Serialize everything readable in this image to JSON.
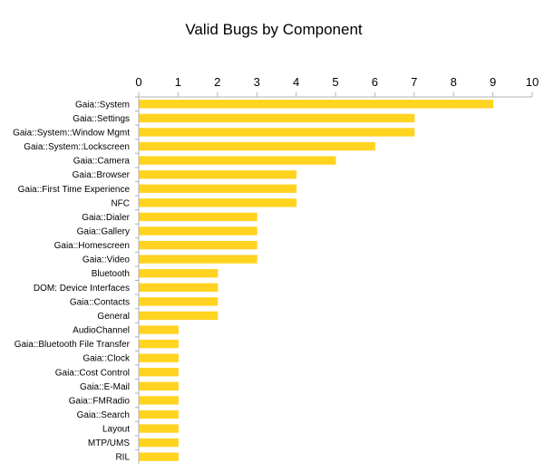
{
  "chart_data": {
    "type": "bar",
    "orientation": "horizontal",
    "title": "Valid Bugs by Component",
    "xlabel": "",
    "ylabel": "",
    "xlim": [
      0,
      10
    ],
    "xticks": [
      "0",
      "1",
      "2",
      "3",
      "4",
      "5",
      "6",
      "7",
      "8",
      "9",
      "10"
    ],
    "x_axis_position": "top",
    "grid": false,
    "legend": "none",
    "bar_color": "#FFD320",
    "categories": [
      "Gaia::System",
      "Gaia::Settings",
      "Gaia::System::Window Mgmt",
      "Gaia::System::Lockscreen",
      "Gaia::Camera",
      "Gaia::Browser",
      "Gaia::First Time Experience",
      "NFC",
      "Gaia::Dialer",
      "Gaia::Gallery",
      "Gaia::Homescreen",
      "Gaia::Video",
      "Bluetooth",
      "DOM: Device Interfaces",
      "Gaia::Contacts",
      "General",
      "AudioChannel",
      "Gaia::Bluetooth File Transfer",
      "Gaia::Clock",
      "Gaia::Cost Control",
      "Gaia::E-Mail",
      "Gaia::FMRadio",
      "Gaia::Search",
      "Layout",
      "MTP/UMS",
      "RIL"
    ],
    "values": [
      9,
      7,
      7,
      6,
      5,
      4,
      4,
      4,
      3,
      3,
      3,
      3,
      2,
      2,
      2,
      2,
      1,
      1,
      1,
      1,
      1,
      1,
      1,
      1,
      1,
      1
    ]
  }
}
